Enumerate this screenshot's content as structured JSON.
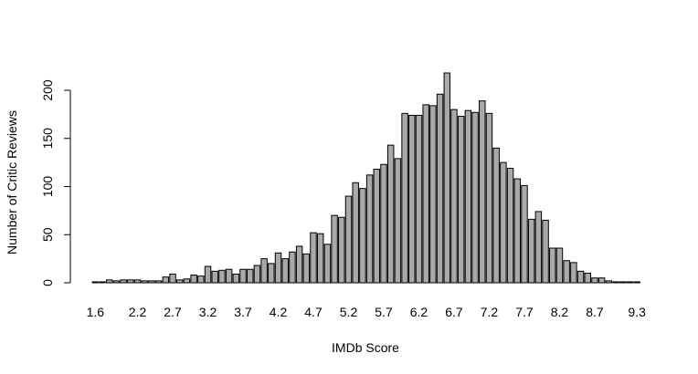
{
  "chart_data": {
    "type": "bar",
    "title": "",
    "xlabel": "IMDb Score",
    "ylabel": "Number of Critic Reviews",
    "ylim": [
      0,
      220
    ],
    "yticks": [
      0,
      50,
      100,
      150,
      200
    ],
    "grid": false,
    "bar_fill": "#a9a9a9",
    "bar_stroke": "#000000",
    "x_tick_labels": [
      "1.6",
      "2.2",
      "2.7",
      "3.2",
      "3.7",
      "4.2",
      "4.7",
      "5.2",
      "5.7",
      "6.2",
      "6.7",
      "7.2",
      "7.7",
      "8.2",
      "8.7",
      "9.3"
    ],
    "categories": [
      "1.6",
      "1.7",
      "1.8",
      "1.9",
      "2.0",
      "2.1",
      "2.2",
      "2.3",
      "2.4",
      "2.5",
      "2.6",
      "2.7",
      "2.8",
      "2.9",
      "3.0",
      "3.1",
      "3.2",
      "3.3",
      "3.4",
      "3.5",
      "3.6",
      "3.7",
      "3.8",
      "3.9",
      "4.0",
      "4.1",
      "4.2",
      "4.3",
      "4.4",
      "4.5",
      "4.6",
      "4.7",
      "4.8",
      "4.9",
      "5.0",
      "5.1",
      "5.2",
      "5.3",
      "5.4",
      "5.5",
      "5.6",
      "5.7",
      "5.8",
      "5.9",
      "6.0",
      "6.1",
      "6.2",
      "6.3",
      "6.4",
      "6.5",
      "6.6",
      "6.7",
      "6.8",
      "6.9",
      "7.0",
      "7.1",
      "7.2",
      "7.3",
      "7.4",
      "7.5",
      "7.6",
      "7.7",
      "7.8",
      "7.9",
      "8.0",
      "8.1",
      "8.2",
      "8.3",
      "8.4",
      "8.5",
      "8.6",
      "8.7",
      "8.8",
      "8.9",
      "9.0",
      "9.1",
      "9.2",
      "9.3"
    ],
    "values": [
      1,
      1,
      3,
      2,
      3,
      3,
      3,
      2,
      2,
      2,
      6,
      9,
      3,
      4,
      8,
      7,
      17,
      12,
      13,
      14,
      9,
      14,
      14,
      18,
      25,
      20,
      31,
      25,
      32,
      38,
      30,
      52,
      51,
      40,
      70,
      68,
      90,
      104,
      98,
      112,
      118,
      123,
      143,
      129,
      176,
      174,
      174,
      185,
      184,
      196,
      218,
      180,
      173,
      179,
      177,
      189,
      176,
      140,
      125,
      119,
      108,
      101,
      66,
      74,
      65,
      36,
      36,
      23,
      21,
      12,
      10,
      5,
      5,
      2,
      1,
      1,
      1,
      1
    ]
  }
}
